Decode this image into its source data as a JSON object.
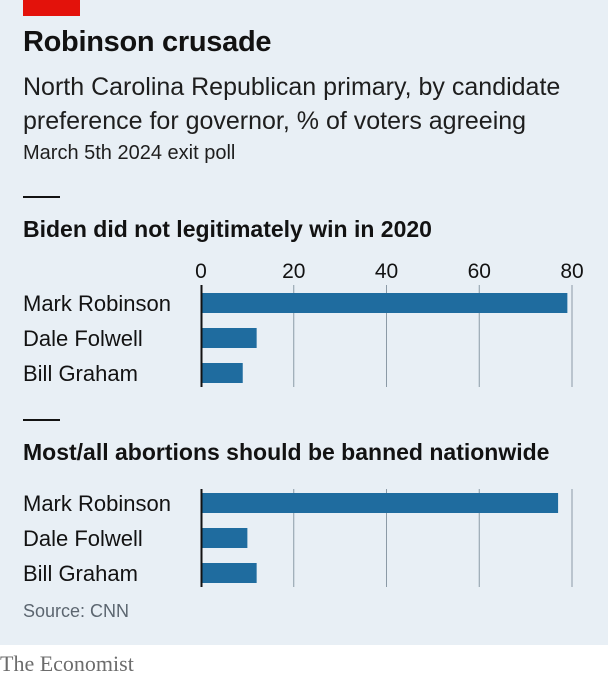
{
  "title": "Robinson crusade",
  "subtitle": "North Carolina Republican primary, by candidate preference for governor, % of voters agreeing",
  "note": "March 5th 2024 exit poll",
  "source": "Source: CNN",
  "publisher": "The Economist",
  "colors": {
    "bar": "#1f6c9f",
    "accent": "#e3120b",
    "background": "#e8eff5",
    "gridline": "#8b9aa6"
  },
  "chart_data": [
    {
      "type": "bar",
      "orientation": "horizontal",
      "title": "Biden did not legitimately win in 2020",
      "categories": [
        "Mark Robinson",
        "Dale Folwell",
        "Bill Graham"
      ],
      "values": [
        79,
        12,
        9
      ],
      "xlim": [
        0,
        80
      ],
      "xticks": [
        0,
        20,
        40,
        60,
        80
      ],
      "grid": true
    },
    {
      "type": "bar",
      "orientation": "horizontal",
      "title": "Most/all abortions should be banned nationwide",
      "categories": [
        "Mark Robinson",
        "Dale Folwell",
        "Bill Graham"
      ],
      "values": [
        77,
        10,
        12
      ],
      "xlim": [
        0,
        80
      ],
      "xticks": [
        0,
        20,
        40,
        60,
        80
      ],
      "grid": true
    }
  ]
}
